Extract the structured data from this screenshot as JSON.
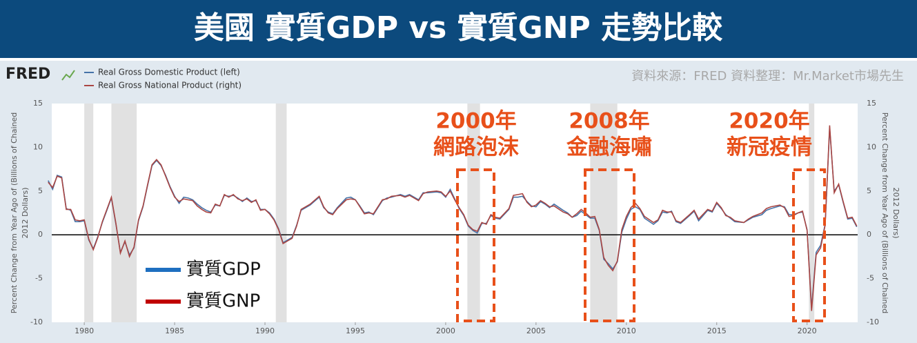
{
  "header": {
    "title": "美國 實質GDP vs 實質GNP 走勢比較",
    "source": "資料來源：FRED  資料整理：Mr.Market市場先生",
    "logo": "FRED"
  },
  "chart_data": {
    "type": "line",
    "ylabel": [
      "Percent Change from Year Ago of (Billions of Chained",
      "2012 Dollars)"
    ],
    "y2label": [
      "Percent Change from Year Ago of (Billions of Chained",
      "2012 Dollars)"
    ],
    "xlim": [
      1978.2,
      2022.8
    ],
    "xticks": [
      1980,
      1985,
      1990,
      1995,
      2000,
      2005,
      2010,
      2015,
      2020
    ],
    "ylim": [
      -10,
      15
    ],
    "yticks": [
      -10,
      -5,
      0,
      5,
      10,
      15
    ],
    "y2lim": [
      -10,
      15
    ],
    "y2ticks": [
      -10,
      -5,
      0,
      5,
      10,
      15
    ],
    "recessions": [
      [
        1980.0,
        1980.5
      ],
      [
        1981.5,
        1982.9
      ],
      [
        1990.6,
        1991.2
      ],
      [
        2001.2,
        2001.9
      ],
      [
        2008.0,
        2009.5
      ],
      [
        2020.1,
        2020.4
      ]
    ],
    "annotations": [
      [
        "2000年",
        "網路泡沫"
      ],
      [
        "2008年",
        "金融海嘯"
      ],
      [
        "2020年",
        "新冠疫情"
      ]
    ],
    "x": [
      1978.0,
      1978.25,
      1978.5,
      1978.75,
      1979.0,
      1979.25,
      1979.5,
      1979.75,
      1980.0,
      1980.25,
      1980.5,
      1980.75,
      1981.0,
      1981.25,
      1981.5,
      1981.75,
      1982.0,
      1982.25,
      1982.5,
      1982.75,
      1983.0,
      1983.25,
      1983.5,
      1983.75,
      1984.0,
      1984.25,
      1984.5,
      1984.75,
      1985.0,
      1985.25,
      1985.5,
      1985.75,
      1986.0,
      1986.25,
      1986.5,
      1986.75,
      1987.0,
      1987.25,
      1987.5,
      1987.75,
      1988.0,
      1988.25,
      1988.5,
      1988.75,
      1989.0,
      1989.25,
      1989.5,
      1989.75,
      1990.0,
      1990.25,
      1990.5,
      1990.75,
      1991.0,
      1991.25,
      1991.5,
      1991.75,
      1992.0,
      1992.5,
      1993.0,
      1993.25,
      1993.5,
      1993.75,
      1994.0,
      1994.5,
      1994.75,
      1995.0,
      1995.25,
      1995.5,
      1995.75,
      1996.0,
      1996.5,
      1996.75,
      1997.0,
      1997.5,
      1997.75,
      1998.0,
      1998.5,
      1998.75,
      1999.0,
      1999.5,
      1999.75,
      2000.0,
      2000.25,
      2000.5,
      2000.75,
      2001.0,
      2001.25,
      2001.5,
      2001.75,
      2002.0,
      2002.25,
      2002.5,
      2002.75,
      2003.0,
      2003.5,
      2003.75,
      2004.0,
      2004.25,
      2004.5,
      2004.75,
      2005.0,
      2005.25,
      2005.5,
      2005.75,
      2006.0,
      2006.5,
      2006.75,
      2007.0,
      2007.25,
      2007.5,
      2007.75,
      2008.0,
      2008.25,
      2008.5,
      2008.75,
      2009.0,
      2009.25,
      2009.5,
      2009.75,
      2010.0,
      2010.25,
      2010.5,
      2010.75,
      2011.0,
      2011.5,
      2011.75,
      2012.0,
      2012.25,
      2012.5,
      2012.75,
      2013.0,
      2013.5,
      2013.75,
      2014.0,
      2014.5,
      2014.75,
      2015.0,
      2015.25,
      2015.5,
      2015.75,
      2016.0,
      2016.5,
      2016.75,
      2017.0,
      2017.5,
      2017.75,
      2018.0,
      2018.5,
      2018.75,
      2019.0,
      2019.25,
      2019.5,
      2019.75,
      2020.0,
      2020.25,
      2020.5,
      2020.75,
      2021.0,
      2021.25,
      2021.5,
      2021.75,
      2022.0,
      2022.25,
      2022.5,
      2022.75
    ],
    "series": [
      {
        "name": "Real Gross Domestic Product (left)",
        "legend_zh": "實質GDP",
        "color": "#4572a7",
        "legend_color": "#1e6fc0",
        "axis": "y",
        "values": [
          6.2,
          5.2,
          6.8,
          6.6,
          3.0,
          2.8,
          1.5,
          1.5,
          1.6,
          -0.6,
          -1.6,
          -0.2,
          1.4,
          2.8,
          4.2,
          1.2,
          -2.0,
          -0.8,
          -2.3,
          -1.5,
          1.6,
          3.2,
          5.6,
          7.9,
          8.5,
          7.9,
          6.8,
          5.5,
          4.4,
          3.6,
          4.3,
          4.2,
          4.0,
          3.5,
          3.1,
          2.8,
          2.6,
          3.4,
          3.3,
          4.5,
          4.4,
          4.5,
          4.2,
          3.8,
          4.2,
          3.8,
          3.9,
          2.9,
          2.9,
          2.5,
          1.8,
          0.7,
          -0.9,
          -0.6,
          -0.3,
          1.1,
          2.8,
          3.4,
          4.3,
          3.1,
          2.6,
          2.4,
          3.1,
          4.2,
          4.3,
          4.0,
          3.3,
          2.5,
          2.6,
          2.3,
          3.9,
          4.2,
          4.3,
          4.6,
          4.4,
          4.6,
          4.0,
          4.8,
          4.8,
          4.9,
          4.8,
          4.3,
          5.2,
          4.1,
          3.0,
          2.2,
          1.0,
          0.5,
          0.2,
          1.3,
          1.3,
          2.2,
          1.9,
          1.8,
          2.9,
          4.3,
          4.3,
          4.4,
          3.8,
          3.3,
          3.2,
          3.8,
          3.5,
          3.1,
          3.5,
          2.8,
          2.5,
          2.0,
          2.2,
          2.7,
          2.3,
          1.9,
          1.9,
          0.5,
          -2.8,
          -3.3,
          -3.9,
          -3.1,
          0.3,
          1.8,
          2.9,
          3.2,
          2.9,
          1.9,
          1.2,
          1.6,
          2.6,
          2.5,
          2.7,
          1.5,
          1.3,
          2.2,
          2.7,
          1.6,
          2.8,
          2.6,
          3.6,
          3.0,
          2.3,
          1.9,
          1.5,
          1.4,
          1.7,
          2.0,
          2.3,
          2.8,
          3.0,
          3.3,
          3.2,
          2.3,
          2.3,
          2.5,
          2.6,
          0.6,
          -8.4,
          -2.0,
          -1.2,
          1.2,
          12.2,
          5.0,
          5.7,
          3.7,
          1.8,
          1.9,
          0.9
        ]
      },
      {
        "name": "Real Gross National Product (right)",
        "legend_zh": "實質GNP",
        "color": "#aa4643",
        "legend_color": "#c00000",
        "axis": "y2",
        "values": [
          6.0,
          5.4,
          6.7,
          6.5,
          2.9,
          2.9,
          1.7,
          1.6,
          1.7,
          -0.5,
          -1.7,
          -0.3,
          1.5,
          2.9,
          4.3,
          1.3,
          -2.1,
          -0.7,
          -2.5,
          -1.4,
          1.7,
          3.3,
          5.7,
          8.0,
          8.6,
          8.0,
          6.7,
          5.4,
          4.3,
          3.8,
          4.1,
          4.0,
          3.9,
          3.3,
          2.9,
          2.6,
          2.5,
          3.5,
          3.3,
          4.6,
          4.3,
          4.6,
          4.1,
          3.9,
          4.1,
          3.7,
          4.0,
          2.8,
          2.9,
          2.4,
          1.7,
          0.6,
          -1.0,
          -0.7,
          -0.4,
          1.0,
          2.9,
          3.5,
          4.4,
          3.2,
          2.5,
          2.3,
          3.0,
          4.0,
          4.1,
          4.0,
          3.2,
          2.4,
          2.5,
          2.4,
          4.0,
          4.1,
          4.4,
          4.5,
          4.3,
          4.5,
          3.9,
          4.7,
          4.9,
          5.0,
          4.9,
          4.4,
          5.0,
          4.0,
          3.1,
          2.3,
          1.1,
          0.6,
          0.4,
          1.4,
          1.2,
          2.3,
          2.0,
          1.9,
          3.0,
          4.5,
          4.6,
          4.7,
          3.7,
          3.2,
          3.4,
          3.9,
          3.6,
          3.2,
          3.3,
          2.6,
          2.4,
          2.0,
          2.4,
          2.9,
          2.5,
          2.0,
          2.1,
          0.6,
          -2.6,
          -3.5,
          -4.1,
          -3.0,
          0.6,
          2.1,
          3.1,
          3.6,
          3.0,
          2.1,
          1.4,
          1.7,
          2.8,
          2.6,
          2.6,
          1.6,
          1.4,
          2.3,
          2.8,
          1.8,
          2.9,
          2.7,
          3.7,
          3.1,
          2.2,
          2.0,
          1.6,
          1.4,
          1.8,
          2.1,
          2.5,
          3.0,
          3.2,
          3.4,
          3.1,
          2.1,
          2.2,
          2.5,
          2.7,
          0.5,
          -8.7,
          -2.3,
          -1.5,
          1.1,
          12.5,
          4.8,
          5.8,
          3.8,
          1.9,
          2.0,
          1.0
        ]
      }
    ]
  }
}
